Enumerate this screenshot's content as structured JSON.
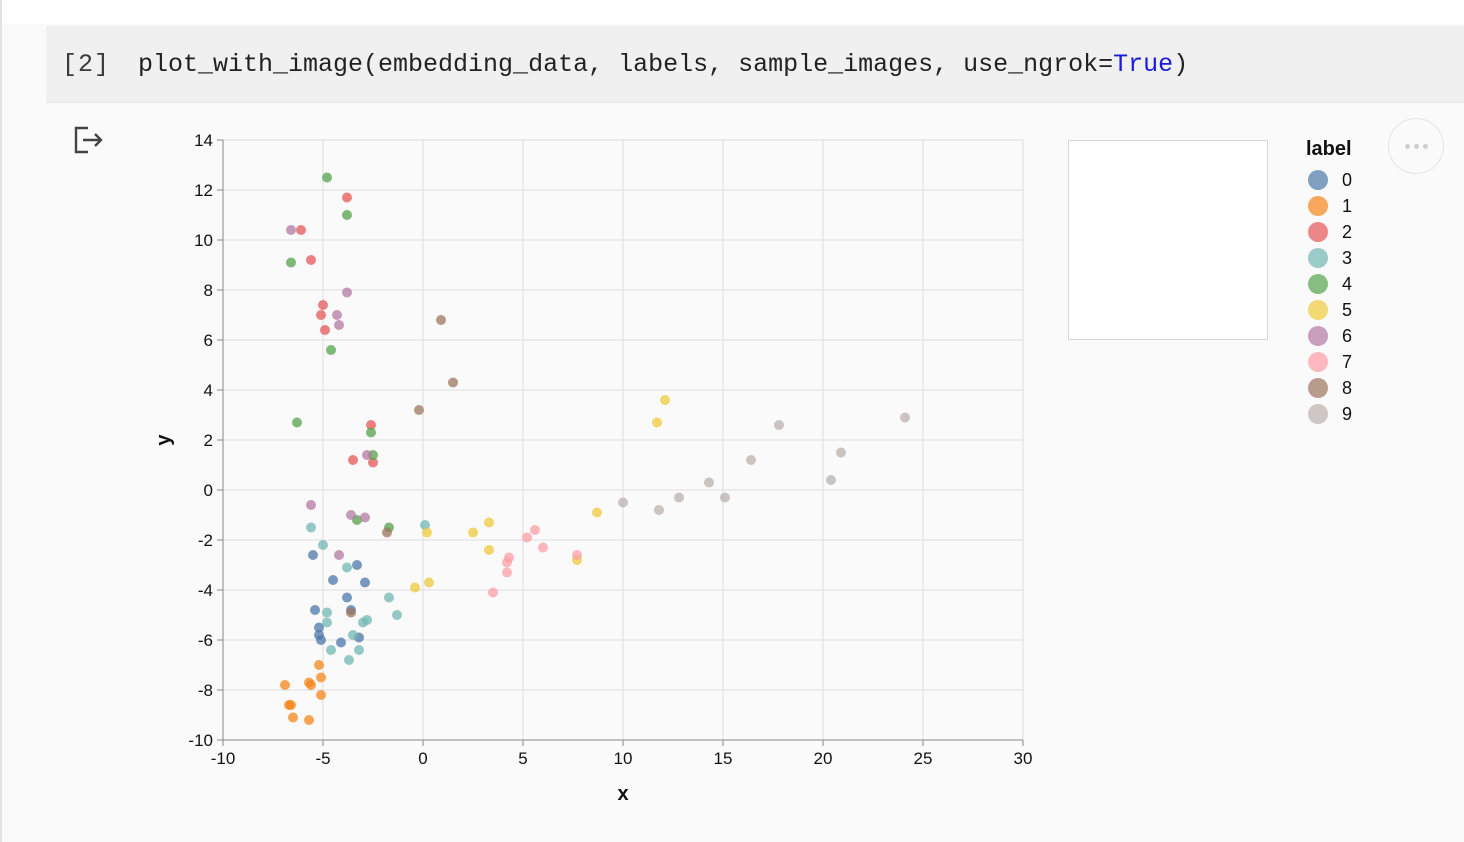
{
  "cell": {
    "prompt": "[2]",
    "code_prefix": "plot_with_image(embedding_data, labels, sample_images, use_ngrok=",
    "code_keyword": "True",
    "code_suffix": ")"
  },
  "icons": {
    "output": "output-exit-icon",
    "more": "more-options-icon"
  },
  "chart_data": {
    "type": "scatter",
    "xlabel": "x",
    "ylabel": "y",
    "xlim": [
      -10,
      30
    ],
    "ylim": [
      -10,
      14
    ],
    "xticks": [
      -10,
      -5,
      0,
      5,
      10,
      15,
      20,
      25,
      30
    ],
    "yticks": [
      -10,
      -8,
      -6,
      -4,
      -2,
      0,
      2,
      4,
      6,
      8,
      10,
      12,
      14
    ],
    "grid": true,
    "legend": {
      "title": "label",
      "placement": "right"
    },
    "series": [
      {
        "name": "0",
        "color": "#4c78a8",
        "points": [
          [
            -5.5,
            -2.6
          ],
          [
            -4.5,
            -3.6
          ],
          [
            -3.3,
            -3.0
          ],
          [
            -2.9,
            -3.7
          ],
          [
            -3.8,
            -4.3
          ],
          [
            -5.4,
            -4.8
          ],
          [
            -5.2,
            -5.5
          ],
          [
            -5.2,
            -5.8
          ],
          [
            -5.1,
            -6.0
          ],
          [
            -4.1,
            -6.1
          ],
          [
            -3.2,
            -5.9
          ],
          [
            -3.6,
            -4.8
          ]
        ]
      },
      {
        "name": "1",
        "color": "#f58518",
        "points": [
          [
            -6.9,
            -7.8
          ],
          [
            -5.7,
            -7.7
          ],
          [
            -5.6,
            -7.8
          ],
          [
            -5.1,
            -7.5
          ],
          [
            -5.2,
            -7.0
          ],
          [
            -5.1,
            -8.2
          ],
          [
            -6.6,
            -8.6
          ],
          [
            -6.7,
            -8.6
          ],
          [
            -6.5,
            -9.1
          ],
          [
            -5.7,
            -9.2
          ]
        ]
      },
      {
        "name": "2",
        "color": "#e45756",
        "points": [
          [
            -3.8,
            11.7
          ],
          [
            -6.1,
            10.4
          ],
          [
            -5.6,
            9.2
          ],
          [
            -5.0,
            7.4
          ],
          [
            -5.1,
            7.0
          ],
          [
            -4.9,
            6.4
          ],
          [
            -2.6,
            2.6
          ],
          [
            -3.5,
            1.2
          ],
          [
            -2.5,
            1.1
          ]
        ]
      },
      {
        "name": "3",
        "color": "#72b7b2",
        "points": [
          [
            -5.6,
            -1.5
          ],
          [
            -5.0,
            -2.2
          ],
          [
            -3.8,
            -3.1
          ],
          [
            -4.8,
            -4.9
          ],
          [
            -4.8,
            -5.3
          ],
          [
            -3.0,
            -5.3
          ],
          [
            -2.8,
            -5.2
          ],
          [
            -3.5,
            -5.8
          ],
          [
            -4.6,
            -6.4
          ],
          [
            -3.2,
            -6.4
          ],
          [
            -3.7,
            -6.8
          ],
          [
            -1.7,
            -4.3
          ],
          [
            -1.3,
            -5.0
          ],
          [
            0.1,
            -1.4
          ]
        ]
      },
      {
        "name": "4",
        "color": "#54a24b",
        "points": [
          [
            -4.8,
            12.5
          ],
          [
            -3.8,
            11.0
          ],
          [
            -6.6,
            9.1
          ],
          [
            -4.6,
            5.6
          ],
          [
            -6.3,
            2.7
          ],
          [
            -2.6,
            2.3
          ],
          [
            -2.5,
            1.4
          ],
          [
            -3.3,
            -1.2
          ],
          [
            -1.7,
            -1.5
          ]
        ]
      },
      {
        "name": "5",
        "color": "#eeca3b",
        "points": [
          [
            12.1,
            3.6
          ],
          [
            11.7,
            2.7
          ],
          [
            8.7,
            -0.9
          ],
          [
            3.3,
            -1.3
          ],
          [
            2.5,
            -1.7
          ],
          [
            0.2,
            -1.7
          ],
          [
            3.3,
            -2.4
          ],
          [
            7.7,
            -2.8
          ],
          [
            0.3,
            -3.7
          ],
          [
            -0.4,
            -3.9
          ]
        ]
      },
      {
        "name": "6",
        "color": "#b279a2",
        "points": [
          [
            -6.6,
            10.4
          ],
          [
            -3.8,
            7.9
          ],
          [
            -4.3,
            7.0
          ],
          [
            -4.2,
            6.6
          ],
          [
            -2.8,
            1.4
          ],
          [
            -5.6,
            -0.6
          ],
          [
            -3.6,
            -1.0
          ],
          [
            -2.9,
            -1.1
          ],
          [
            -4.2,
            -2.6
          ]
        ]
      },
      {
        "name": "7",
        "color": "#ff9da6",
        "points": [
          [
            5.6,
            -1.6
          ],
          [
            5.2,
            -1.9
          ],
          [
            6.0,
            -2.3
          ],
          [
            4.3,
            -2.7
          ],
          [
            4.2,
            -2.9
          ],
          [
            7.7,
            -2.6
          ],
          [
            4.2,
            -3.3
          ],
          [
            3.5,
            -4.1
          ]
        ]
      },
      {
        "name": "8",
        "color": "#9d755d",
        "points": [
          [
            0.9,
            6.8
          ],
          [
            1.5,
            4.3
          ],
          [
            -0.2,
            3.2
          ],
          [
            -1.8,
            -1.7
          ],
          [
            -3.6,
            -4.9
          ]
        ]
      },
      {
        "name": "9",
        "color": "#bab0ac",
        "points": [
          [
            24.1,
            2.9
          ],
          [
            17.8,
            2.6
          ],
          [
            20.9,
            1.5
          ],
          [
            16.4,
            1.2
          ],
          [
            20.4,
            0.4
          ],
          [
            14.3,
            0.3
          ],
          [
            12.8,
            -0.3
          ],
          [
            15.1,
            -0.3
          ],
          [
            10.0,
            -0.5
          ],
          [
            11.8,
            -0.8
          ]
        ]
      }
    ]
  }
}
